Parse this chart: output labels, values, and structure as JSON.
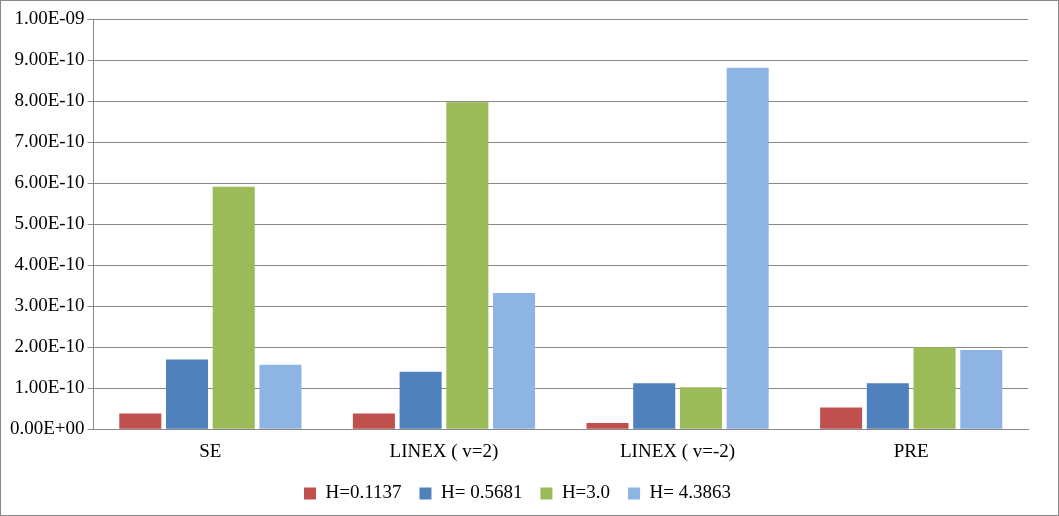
{
  "chart_data": {
    "type": "bar",
    "categories": [
      "SE",
      "LINEX ( v=2)",
      "LINEX ( v=-2)",
      "PRE"
    ],
    "series": [
      {
        "name": "H=0.1137",
        "color": "#c0504d",
        "values": [
          3.8e-11,
          3.8e-11,
          1.5e-11,
          5.3e-11
        ]
      },
      {
        "name": "H= 0.5681",
        "color": "#4f81bd",
        "values": [
          1.7e-10,
          1.4e-10,
          1.12e-10,
          1.12e-10
        ]
      },
      {
        "name": "H=3.0",
        "color": "#9bbb59",
        "values": [
          5.91e-10,
          7.97e-10,
          1.02e-10,
          2e-10
        ]
      },
      {
        "name": "H= 4.3863",
        "color": "#8eb4e3",
        "values": [
          1.57e-10,
          3.32e-10,
          8.81e-10,
          1.93e-10
        ]
      }
    ],
    "ylim": [
      0,
      1e-09
    ],
    "yticks": [
      {
        "value": 0,
        "label": "0.00E+00"
      },
      {
        "value": 1e-10,
        "label": "1.00E-10"
      },
      {
        "value": 2e-10,
        "label": "2.00E-10"
      },
      {
        "value": 3e-10,
        "label": "3.00E-10"
      },
      {
        "value": 4e-10,
        "label": "4.00E-10"
      },
      {
        "value": 5e-10,
        "label": "5.00E-10"
      },
      {
        "value": 6e-10,
        "label": "6.00E-10"
      },
      {
        "value": 7e-10,
        "label": "7.00E-10"
      },
      {
        "value": 8e-10,
        "label": "8.00E-10"
      },
      {
        "value": 9e-10,
        "label": "9.00E-10"
      },
      {
        "value": 1e-09,
        "label": "1.00E-09"
      }
    ],
    "grid": "y",
    "legend": "bottom"
  }
}
